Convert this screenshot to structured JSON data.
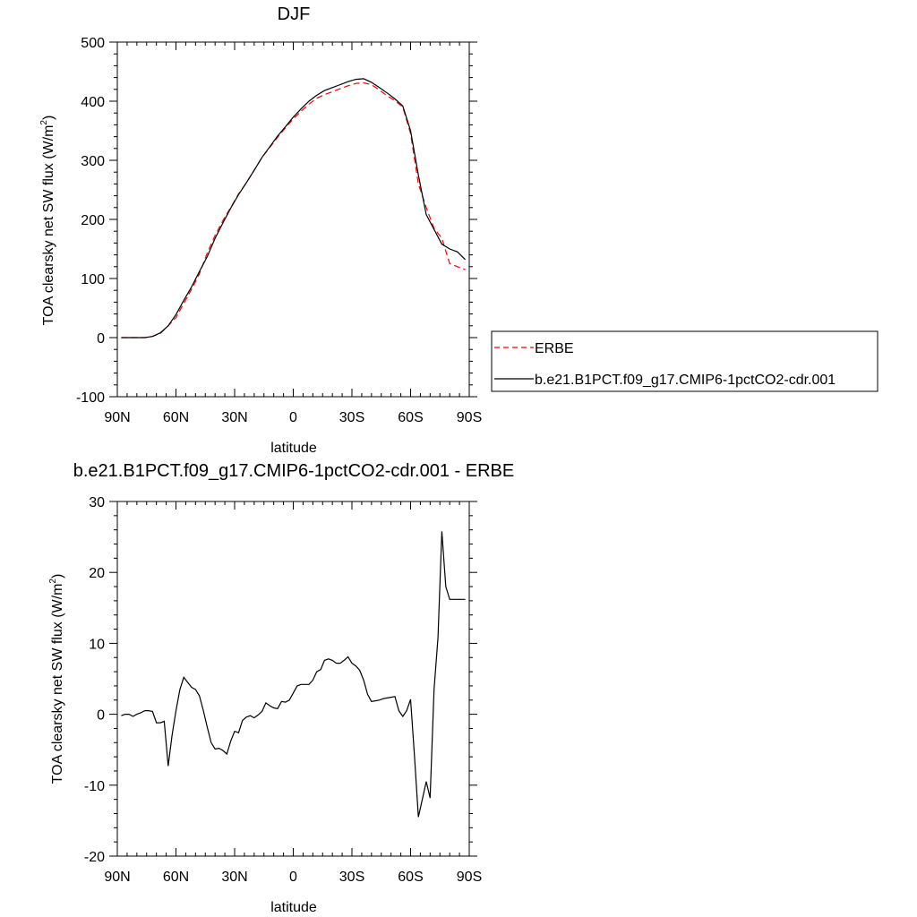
{
  "chart_data": [
    {
      "type": "line",
      "title": "DJF",
      "xlabel": "latitude",
      "ylabel": "TOA clearsky net SW flux (W/m²)",
      "ylabel_main": "TOA clearsky net SW flux (W/m",
      "ylabel_sup": "2",
      "ylabel_close": ")",
      "xlim": [
        90,
        -90
      ],
      "ylim": [
        -100,
        500
      ],
      "xticks": [
        90,
        60,
        30,
        0,
        -30,
        -60,
        -90
      ],
      "xtick_labels": [
        "90N",
        "60N",
        "30N",
        "0",
        "30S",
        "60S",
        "90S"
      ],
      "yticks": [
        -100,
        0,
        100,
        200,
        300,
        400,
        500
      ],
      "ytick_labels": [
        "-100",
        "0",
        "100",
        "200",
        "300",
        "400",
        "500"
      ],
      "grid": false,
      "legend_position": "right",
      "series": [
        {
          "name": "ERBE",
          "color": "#ff0000",
          "dash": "dashed",
          "x": [
            88,
            84,
            80,
            76,
            72,
            68,
            64,
            60,
            56,
            52,
            48,
            44,
            40,
            36,
            32,
            28,
            24,
            20,
            16,
            12,
            8,
            4,
            0,
            -4,
            -8,
            -12,
            -16,
            -20,
            -24,
            -28,
            -32,
            -36,
            -40,
            -44,
            -48,
            -52,
            -56,
            -60,
            -64,
            -68,
            -72,
            -76,
            -80,
            -84,
            -88
          ],
          "y": [
            0,
            0,
            0,
            0,
            2,
            7,
            20,
            34,
            58,
            82,
            108,
            143,
            173,
            198,
            220,
            243,
            262,
            283,
            305,
            322,
            339,
            355,
            370,
            383,
            395,
            405,
            411,
            416,
            421,
            426,
            430,
            431,
            428,
            419,
            409,
            401,
            390,
            345,
            260,
            220,
            185,
            168,
            125,
            120,
            115
          ]
        },
        {
          "name": "b.e21.B1PCT.f09_g17.CMIP6-1pctCO2-cdr.001",
          "color": "#000000",
          "dash": "solid",
          "x": [
            88,
            84,
            80,
            76,
            72,
            68,
            64,
            60,
            56,
            52,
            48,
            44,
            40,
            36,
            32,
            28,
            24,
            20,
            16,
            12,
            8,
            4,
            0,
            -4,
            -8,
            -12,
            -16,
            -20,
            -24,
            -28,
            -32,
            -36,
            -40,
            -44,
            -48,
            -52,
            -56,
            -60,
            -64,
            -68,
            -72,
            -76,
            -80,
            -84,
            -88
          ],
          "y": [
            0,
            0,
            0,
            0,
            2,
            8,
            20,
            39,
            63,
            86,
            112,
            137,
            168,
            194,
            219,
            242,
            262,
            283,
            305,
            323,
            341,
            357,
            373,
            387,
            400,
            410,
            418,
            423,
            428,
            433,
            437,
            438,
            432,
            423,
            414,
            404,
            392,
            350,
            275,
            208,
            183,
            158,
            150,
            145,
            132
          ]
        }
      ]
    },
    {
      "type": "line",
      "title": "b.e21.B1PCT.f09_g17.CMIP6-1pctCO2-cdr.001 - ERBE",
      "xlabel": "latitude",
      "ylabel": "TOA clearsky net SW flux (W/m²)",
      "ylabel_main": "TOA clearsky net SW flux (W/m",
      "ylabel_sup": "2",
      "ylabel_close": ")",
      "xlim": [
        90,
        -90
      ],
      "ylim": [
        -20,
        30
      ],
      "xticks": [
        90,
        60,
        30,
        0,
        -30,
        -60,
        -90
      ],
      "xtick_labels": [
        "90N",
        "60N",
        "30N",
        "0",
        "30S",
        "60S",
        "90S"
      ],
      "yticks": [
        -20,
        -10,
        0,
        10,
        20,
        30
      ],
      "ytick_labels": [
        "-20",
        "-10",
        "0",
        "10",
        "20",
        "30"
      ],
      "grid": false,
      "series": [
        {
          "color": "#000000",
          "dash": "solid",
          "x": [
            88,
            86,
            84,
            82,
            80,
            78,
            76,
            74,
            72,
            70,
            68,
            66,
            64,
            62,
            60,
            58,
            56,
            54,
            52,
            50,
            48,
            46,
            44,
            42,
            40,
            38,
            36,
            34,
            32,
            30,
            28,
            26,
            24,
            22,
            20,
            18,
            16,
            14,
            12,
            10,
            8,
            6,
            4,
            2,
            0,
            -2,
            -4,
            -6,
            -8,
            -10,
            -12,
            -14,
            -16,
            -18,
            -20,
            -22,
            -24,
            -26,
            -28,
            -30,
            -32,
            -34,
            -36,
            -38,
            -40,
            -42,
            -44,
            -46,
            -48,
            -50,
            -52,
            -54,
            -56,
            -58,
            -60,
            -62,
            -64,
            -66,
            -68,
            -70,
            -72,
            -74,
            -76,
            -78,
            -80,
            -82,
            -84,
            -86,
            -88
          ],
          "y": [
            -0.2,
            0,
            0,
            -0.3,
            0,
            0.2,
            0.5,
            0.5,
            0.4,
            -1.2,
            -1.2,
            -1.0,
            -7.3,
            -3,
            0.5,
            3.5,
            5.2,
            4.5,
            3.8,
            3.5,
            2.6,
            0.5,
            -1.8,
            -4.0,
            -4.9,
            -4.8,
            -5.1,
            -5.6,
            -3.8,
            -2.4,
            -2.6,
            -0.9,
            -0.4,
            -0.2,
            -0.5,
            -0.1,
            0.4,
            1.6,
            1.2,
            0.9,
            0.8,
            1.8,
            1.7,
            2.0,
            3.0,
            4.0,
            4.2,
            4.2,
            4.2,
            4.8,
            6.0,
            6.3,
            7.6,
            7.8,
            7.6,
            7.2,
            7.2,
            7.6,
            8.1,
            7.2,
            6.8,
            6.2,
            4.8,
            2.8,
            1.8,
            1.9,
            2.0,
            2.2,
            2.3,
            2.4,
            2.5,
            0.5,
            -0.3,
            0.5,
            2.1,
            -6,
            -14.5,
            -12,
            -9.5,
            -11.8,
            3.5,
            10.8,
            25.8,
            18.0,
            16.2,
            16.2,
            16.2,
            16.2,
            16.2
          ]
        }
      ]
    }
  ]
}
